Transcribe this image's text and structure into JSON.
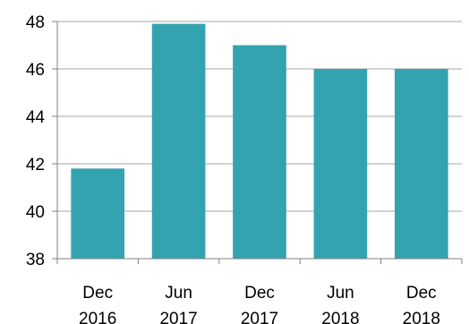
{
  "chart_data": {
    "type": "bar",
    "categories": [
      [
        "Dec",
        "2016"
      ],
      [
        "Jun",
        "2017"
      ],
      [
        "Dec",
        "2017"
      ],
      [
        "Jun",
        "2018"
      ],
      [
        "Dec",
        "2018"
      ]
    ],
    "values": [
      41.8,
      47.9,
      47.0,
      46.0,
      46.0
    ],
    "ylim": [
      38,
      48
    ],
    "yticks": [
      38,
      40,
      42,
      44,
      46,
      48
    ],
    "grid": true,
    "bar_color": "#33A3AF",
    "grid_color": "#A6A6A6",
    "axis_color": "#808080"
  }
}
